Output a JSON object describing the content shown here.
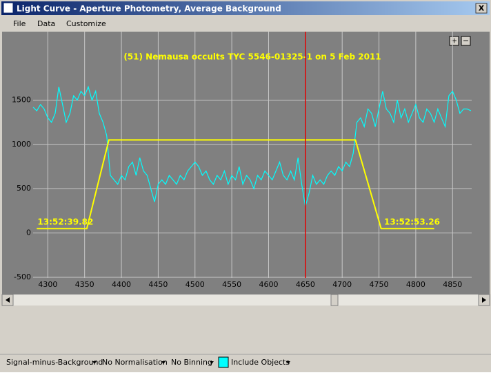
{
  "window": {
    "title": "Light Curve - Aperture Photometry, Average Background",
    "close": "X"
  },
  "menu": [
    "File",
    "Data",
    "Customize"
  ],
  "zoom_buttons": [
    "+",
    "−"
  ],
  "status_bar": [
    "Signal-minus-Background",
    "No Normalisation",
    "No Binning",
    "Include Objects"
  ],
  "chart_data": {
    "type": "line",
    "title": "(51) Nemausa occults TYC 5546-01325-1 on 5 Feb 2011",
    "xlim": [
      4280,
      4876
    ],
    "ylim": [
      -508,
      2273
    ],
    "xticks": [
      4300,
      4350,
      4400,
      4450,
      4500,
      4550,
      4600,
      4650,
      4700,
      4750,
      4800,
      4850
    ],
    "yticks": [
      -500,
      0,
      500,
      1000,
      1500
    ],
    "grid": true,
    "marker_x": 4650,
    "marker_color": "#e00000",
    "series": [
      {
        "color": "#00ffff",
        "x": [
          4280,
          4285,
          4290,
          4295,
          4300,
          4305,
          4310,
          4315,
          4320,
          4325,
          4330,
          4335,
          4340,
          4345,
          4350,
          4355,
          4360,
          4365,
          4370,
          4375,
          4380,
          4385,
          4390,
          4395,
          4400,
          4405,
          4410,
          4415,
          4420,
          4425,
          4430,
          4435,
          4440,
          4445,
          4450,
          4455,
          4460,
          4465,
          4470,
          4475,
          4480,
          4485,
          4490,
          4495,
          4500,
          4505,
          4510,
          4515,
          4520,
          4525,
          4530,
          4535,
          4540,
          4545,
          4550,
          4555,
          4560,
          4565,
          4570,
          4575,
          4580,
          4585,
          4590,
          4595,
          4600,
          4605,
          4610,
          4615,
          4620,
          4625,
          4630,
          4635,
          4640,
          4645,
          4650,
          4655,
          4660,
          4665,
          4670,
          4675,
          4680,
          4685,
          4690,
          4695,
          4700,
          4705,
          4710,
          4715,
          4720,
          4725,
          4730,
          4735,
          4740,
          4745,
          4750,
          4755,
          4760,
          4765,
          4770,
          4775,
          4780,
          4785,
          4790,
          4795,
          4800,
          4805,
          4810,
          4815,
          4820,
          4825,
          4830,
          4835,
          4840,
          4845,
          4850,
          4855,
          4860,
          4865,
          4870,
          4875
        ],
        "values": [
          1420,
          1380,
          1450,
          1400,
          1300,
          1250,
          1350,
          1650,
          1450,
          1250,
          1350,
          1550,
          1500,
          1600,
          1550,
          1650,
          1500,
          1600,
          1350,
          1250,
          1100,
          650,
          600,
          550,
          650,
          600,
          750,
          800,
          650,
          850,
          700,
          650,
          500,
          350,
          550,
          600,
          550,
          650,
          600,
          550,
          650,
          600,
          700,
          750,
          800,
          750,
          650,
          700,
          600,
          550,
          650,
          600,
          700,
          550,
          650,
          600,
          750,
          550,
          650,
          600,
          500,
          650,
          600,
          700,
          650,
          600,
          700,
          800,
          650,
          600,
          700,
          600,
          850,
          550,
          300,
          450,
          650,
          550,
          600,
          550,
          650,
          700,
          650,
          750,
          700,
          800,
          750,
          900,
          1250,
          1300,
          1200,
          1400,
          1350,
          1200,
          1400,
          1600,
          1400,
          1350,
          1250,
          1500,
          1300,
          1400,
          1250,
          1350,
          1450,
          1300,
          1250,
          1400,
          1350,
          1250,
          1400,
          1300,
          1200,
          1550,
          1600,
          1500,
          1350,
          1400,
          1400,
          1380
        ]
      },
      {
        "color": "#ffff00",
        "x": [
          4285,
          4353,
          4383,
          4718,
          4753,
          4825
        ],
        "values": [
          50,
          50,
          1050,
          1050,
          50,
          50
        ]
      }
    ],
    "annotations": [
      {
        "text": "13:52:39.82",
        "x": 4286,
        "y": 121
      },
      {
        "text": "13:52:53.26",
        "x": 4757,
        "y": 121
      }
    ]
  }
}
